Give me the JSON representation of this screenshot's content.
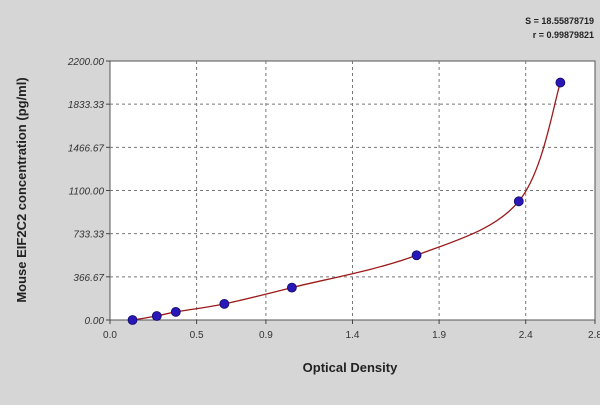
{
  "chart_data": {
    "type": "scatter",
    "title": "",
    "xlabel": "Optical Density",
    "ylabel": "Mouse EIF2C2 concentration (pg/ml)",
    "xlim": [
      0.0,
      2.8
    ],
    "ylim": [
      0,
      2200
    ],
    "x_ticks": [
      0.0,
      0.5,
      0.9,
      1.4,
      1.9,
      2.4,
      2.8
    ],
    "x_tick_labels": [
      "0.0",
      "0.5",
      "0.9",
      "1.4",
      "1.9",
      "2.4",
      "2.8"
    ],
    "y_ticks": [
      0,
      366.67,
      733.33,
      1100,
      1466.67,
      1833.33,
      2200
    ],
    "y_tick_labels": [
      "0.00",
      "366.67",
      "733.33",
      "1100.00",
      "1466.67",
      "1833.33",
      "2200.00"
    ],
    "grid": true,
    "stats": [
      "S = 18.55878719",
      "r = 0.99879821"
    ],
    "series": [
      {
        "points": [
          {
            "x": 0.13,
            "y": 0
          },
          {
            "x": 0.27,
            "y": 34
          },
          {
            "x": 0.38,
            "y": 69
          },
          {
            "x": 0.66,
            "y": 137
          },
          {
            "x": 1.05,
            "y": 275
          },
          {
            "x": 1.77,
            "y": 550
          },
          {
            "x": 2.36,
            "y": 1008
          },
          {
            "x": 2.6,
            "y": 2017
          }
        ],
        "marker_color": "#2a17b8",
        "curve_color": "#9b1a1a"
      }
    ]
  }
}
